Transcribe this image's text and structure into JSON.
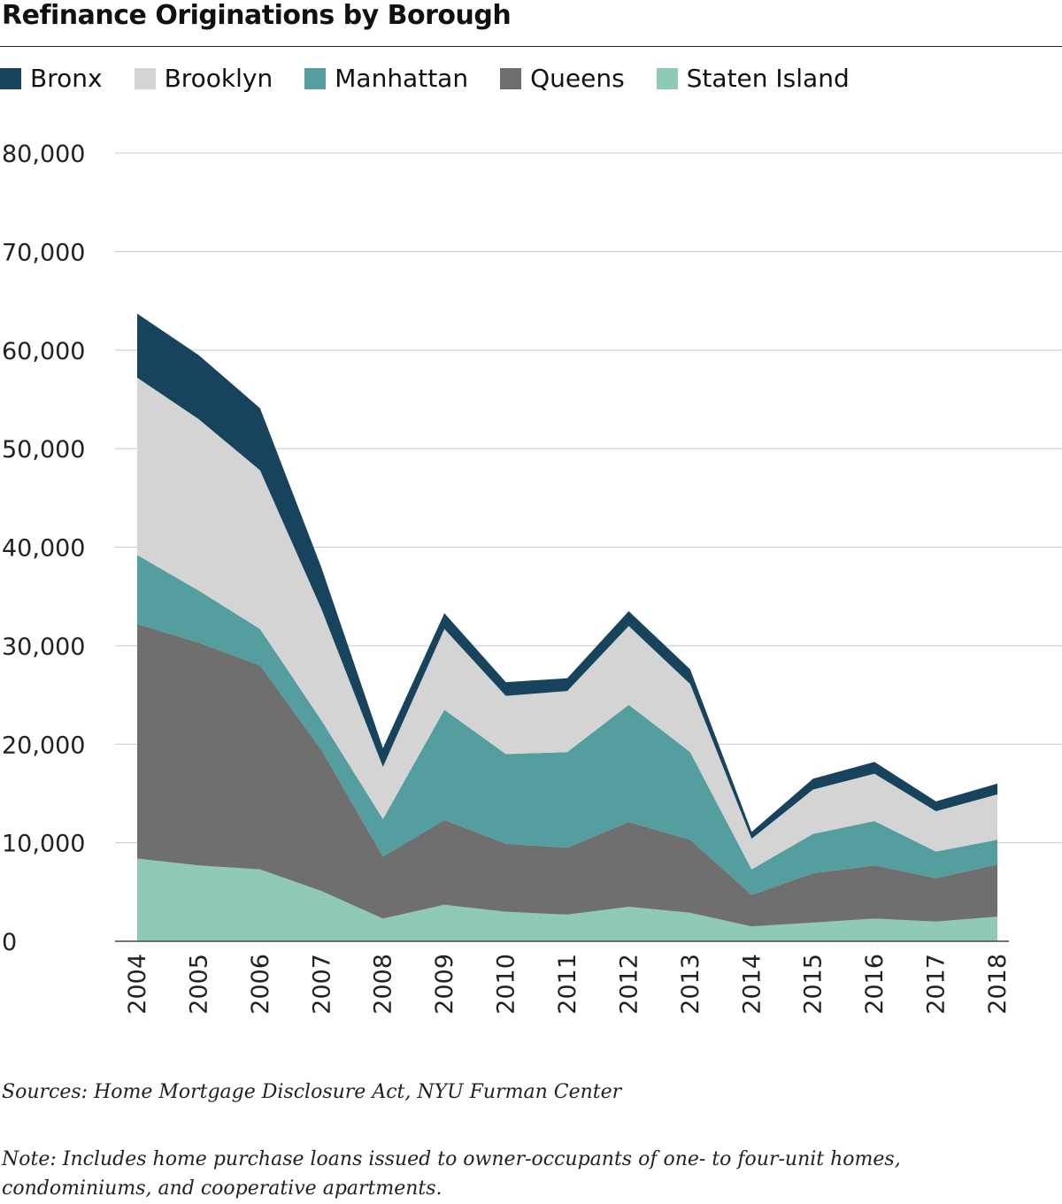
{
  "title": "Refinance Originations by Borough",
  "source": "Sources: Home Mortgage Disclosure Act, NYU Furman Center",
  "note": "Note: Includes home purchase loans issued to owner-occupants of one- to four-unit homes, condominiums, and cooperative apartments.",
  "chart_data": {
    "type": "area",
    "stacked": true,
    "title": "Refinance Originations by Borough",
    "xlabel": "",
    "ylabel": "",
    "ylim": [
      0,
      80000
    ],
    "yticks": [
      0,
      10000,
      20000,
      30000,
      40000,
      50000,
      60000,
      70000,
      80000
    ],
    "ytick_labels": [
      "0",
      "10,000",
      "20,000",
      "30,000",
      "40,000",
      "50,000",
      "60,000",
      "70,000",
      "80,000"
    ],
    "grid": true,
    "legend_position": "top",
    "x": [
      "2004",
      "2005",
      "2006",
      "2007",
      "2008",
      "2009",
      "2010",
      "2011",
      "2012",
      "2013",
      "2014",
      "2015",
      "2016",
      "2017",
      "2018"
    ],
    "series": [
      {
        "name": "Staten Island",
        "color": "#8ecab6",
        "values": [
          8400,
          7700,
          7300,
          5100,
          2300,
          3700,
          3000,
          2700,
          3500,
          2900,
          1500,
          1900,
          2300,
          2000,
          2500
        ]
      },
      {
        "name": "Queens",
        "color": "#6f6f6f",
        "values": [
          23800,
          22600,
          20700,
          14300,
          6300,
          8600,
          6900,
          6800,
          8600,
          7400,
          3200,
          5000,
          5400,
          4400,
          5300
        ]
      },
      {
        "name": "Manhattan",
        "color": "#559e9f",
        "values": [
          7000,
          5300,
          3700,
          3000,
          3800,
          11200,
          9100,
          9700,
          11900,
          8900,
          2600,
          4000,
          4500,
          2700,
          2500
        ]
      },
      {
        "name": "Brooklyn",
        "color": "#d4d4d4",
        "values": [
          18000,
          17400,
          16100,
          11300,
          5300,
          8200,
          5900,
          6200,
          8000,
          6900,
          3100,
          4500,
          4800,
          4100,
          4600
        ]
      },
      {
        "name": "Bronx",
        "color": "#17435d",
        "values": [
          6500,
          6500,
          6300,
          4200,
          1900,
          1600,
          1400,
          1300,
          1500,
          1500,
          700,
          1100,
          1200,
          1000,
          1100
        ]
      }
    ]
  },
  "legend": [
    {
      "label": "Bronx",
      "color": "#17435d"
    },
    {
      "label": "Brooklyn",
      "color": "#d4d4d4"
    },
    {
      "label": "Manhattan",
      "color": "#559e9f"
    },
    {
      "label": "Queens",
      "color": "#6f6f6f"
    },
    {
      "label": "Staten Island",
      "color": "#8ecab6"
    }
  ]
}
